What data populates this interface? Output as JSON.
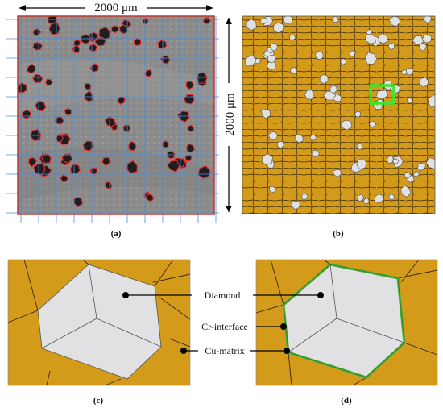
{
  "figure": {
    "panels": {
      "a": {
        "caption": "(a)",
        "scale_top": "2000 μm"
      },
      "b": {
        "caption": "(b)",
        "scale_right": "2000 μm"
      },
      "c": {
        "caption": "(c)"
      },
      "d": {
        "caption": "(d)"
      }
    },
    "labels": {
      "diamond": "Diamond",
      "cr_interface": "Cr-interface",
      "cu_matrix": "Cu-matrix"
    },
    "colors": {
      "cu_matrix": "#d49a1a",
      "diamond": "#e1e1e3",
      "cr_interface": "#4aae3a",
      "micrograph_bg": "#8e8e8e",
      "grid_line": "#4a90e2",
      "particle_outline": "#e23030",
      "highlight_box": "#39e62a",
      "panel_border": "#c0392b"
    }
  }
}
